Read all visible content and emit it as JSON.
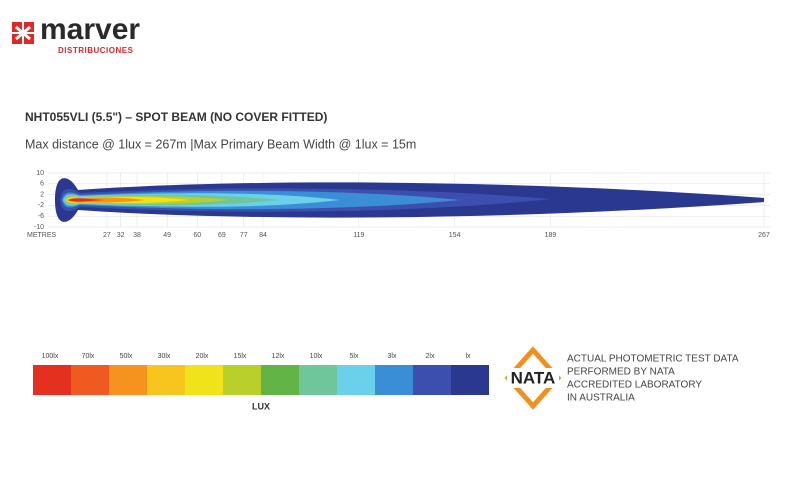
{
  "header": {
    "brand": "marver",
    "tagline": "DISTRIBUCIONES"
  },
  "title": "NHT055VLI (5.5\")  – SPOT BEAM (NO COVER FITTED)",
  "subtitle": "Max distance @ 1lux = 267m  |Max Primary Beam Width @ 1lux = 15m",
  "diagram": {
    "x_label": "METRES",
    "xlim": [
      0,
      267
    ],
    "ylim": [
      -10,
      10
    ],
    "xticks": [
      27,
      32,
      38,
      49,
      60,
      69,
      77,
      84,
      119,
      154,
      189,
      267
    ],
    "yticks": [
      10,
      6,
      2,
      -2,
      -6,
      -10
    ]
  },
  "legend": {
    "title": "LUX",
    "items": [
      {
        "label": "100lx",
        "color": "#e4301f"
      },
      {
        "label": "70lx",
        "color": "#ee5a1f"
      },
      {
        "label": "50lx",
        "color": "#f6921e"
      },
      {
        "label": "30lx",
        "color": "#f7c51d"
      },
      {
        "label": "20lx",
        "color": "#f1e31b"
      },
      {
        "label": "15lx",
        "color": "#b9d02b"
      },
      {
        "label": "12lx",
        "color": "#62b446"
      },
      {
        "label": "10lx",
        "color": "#6fc69a"
      },
      {
        "label": "5lx",
        "color": "#6bd0ea"
      },
      {
        "label": "3lx",
        "color": "#3a8ed5"
      },
      {
        "label": "2lx",
        "color": "#3d4fae"
      },
      {
        "label": "lx",
        "color": "#2a3890"
      }
    ]
  },
  "nata": {
    "logo": "NATA",
    "lines": [
      "ACTUAL PHOTOMETRIC TEST DATA",
      "PERFORMED BY NATA",
      "ACCREDITED LABORATORY",
      "IN AUSTRALIA"
    ]
  }
}
